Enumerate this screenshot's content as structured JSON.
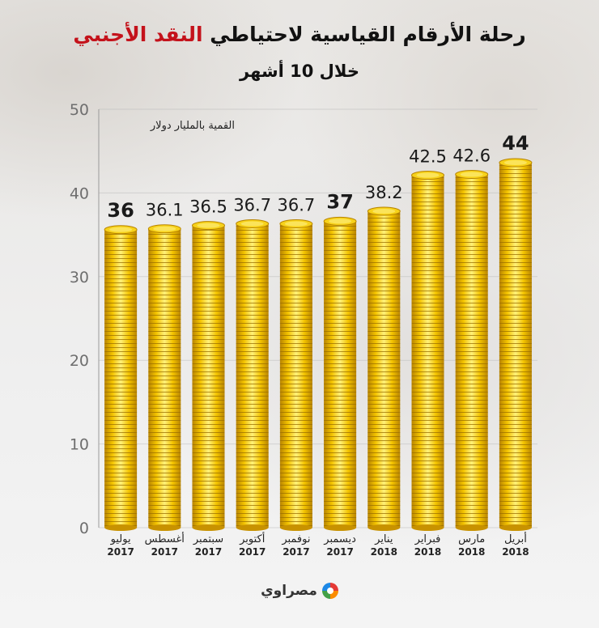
{
  "title_prefix": "رحلة الأرقام القياسية لاحتياطي ",
  "title_highlight": "النقد الأجنبي",
  "subtitle": "خلال 10 أشهر",
  "unit_label": "القمية بالمليار دولار",
  "brand": "مصراوي",
  "colors": {
    "highlight": "#c4121b",
    "coin_light": "#fff17a",
    "coin_mid": "#f4c400",
    "coin_dark": "#b88400"
  },
  "chart_data": {
    "type": "bar",
    "categories": [
      [
        "يوليو",
        "2017"
      ],
      [
        "أغسطس",
        "2017"
      ],
      [
        "سبتمبر",
        "2017"
      ],
      [
        "أكتوبر",
        "2017"
      ],
      [
        "نوفمبر",
        "2017"
      ],
      [
        "ديسمبر",
        "2017"
      ],
      [
        "يناير",
        "2018"
      ],
      [
        "فبراير",
        "2018"
      ],
      [
        "مارس",
        "2018"
      ],
      [
        "أبريل",
        "2018"
      ]
    ],
    "values": [
      36,
      36.1,
      36.5,
      36.7,
      36.7,
      37,
      38.2,
      42.5,
      42.6,
      44
    ],
    "value_labels": [
      "36",
      "36.1",
      "36.5",
      "36.7",
      "36.7",
      "37",
      "38.2",
      "42.5",
      "42.6",
      "44"
    ],
    "ylim": [
      0,
      50
    ],
    "yticks": [
      "0",
      "10",
      "20",
      "30",
      "40",
      "50"
    ],
    "grid": true,
    "xlabel": "",
    "ylabel": "القمية بالمليار دولار"
  }
}
